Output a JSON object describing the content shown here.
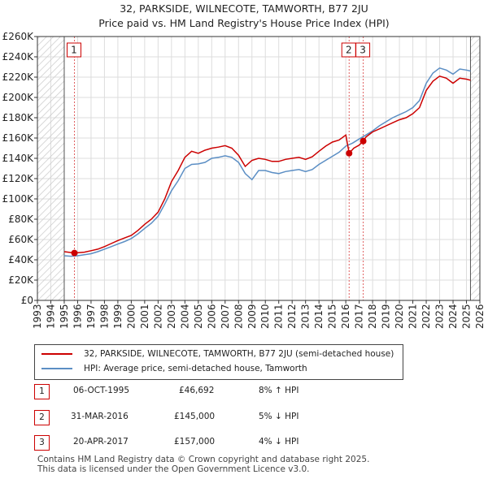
{
  "title_line1": "32, PARKSIDE, WILNECOTE, TAMWORTH, B77 2JU",
  "title_line2": "Price paid vs. HM Land Registry's House Price Index (HPI)",
  "colors": {
    "property_line": "#cc0000",
    "hpi_line": "#5b8ec4",
    "grid": "#dddddd",
    "hatch": "#cccccc",
    "marker_line": "#e06060",
    "marker_box_border": "#cc0000"
  },
  "chart_data": {
    "type": "line",
    "title": "32, PARKSIDE, WILNECOTE, TAMWORTH, B77 2JU — Price paid vs. HM Land Registry's House Price Index (HPI)",
    "xlabel": "",
    "ylabel": "",
    "xlim": [
      1993,
      2026
    ],
    "ylim": [
      0,
      260000
    ],
    "y_ticks": [
      0,
      20000,
      40000,
      60000,
      80000,
      100000,
      120000,
      140000,
      160000,
      180000,
      200000,
      220000,
      240000,
      260000
    ],
    "y_tick_labels": [
      "£0",
      "£20K",
      "£40K",
      "£60K",
      "£80K",
      "£100K",
      "£120K",
      "£140K",
      "£160K",
      "£180K",
      "£200K",
      "£220K",
      "£240K",
      "£260K"
    ],
    "x_ticks": [
      1993,
      1994,
      1995,
      1996,
      1997,
      1998,
      1999,
      2000,
      2001,
      2002,
      2003,
      2004,
      2005,
      2006,
      2007,
      2008,
      2009,
      2010,
      2011,
      2012,
      2013,
      2014,
      2015,
      2016,
      2017,
      2018,
      2019,
      2020,
      2021,
      2022,
      2023,
      2024,
      2025,
      2026
    ],
    "x_tick_labels": [
      "1993",
      "1994",
      "1995",
      "1996",
      "1997",
      "1998",
      "1999",
      "2000",
      "2001",
      "2002",
      "2003",
      "2004",
      "2005",
      "2006",
      "2007",
      "2008",
      "2009",
      "2010",
      "2011",
      "2012",
      "2013",
      "2014",
      "2015",
      "2016",
      "2017",
      "2018",
      "2019",
      "2020",
      "2021",
      "2022",
      "2023",
      "2024",
      "2025",
      "2026"
    ],
    "data_range": [
      1995.0,
      2025.3
    ],
    "grid": true,
    "legend_position": "bottom",
    "series": [
      {
        "name": "32, PARKSIDE, WILNECOTE, TAMWORTH, B77 2JU (semi-detached house)",
        "color": "#cc0000",
        "x": [
          1995.0,
          1995.76,
          1996.5,
          1997.0,
          1997.5,
          1998.0,
          1998.5,
          1999.0,
          1999.5,
          2000.0,
          2000.5,
          2001.0,
          2001.5,
          2002.0,
          2002.5,
          2003.0,
          2003.5,
          2004.0,
          2004.5,
          2005.0,
          2005.5,
          2006.0,
          2006.5,
          2007.0,
          2007.5,
          2008.0,
          2008.5,
          2009.0,
          2009.5,
          2010.0,
          2010.5,
          2011.0,
          2011.5,
          2012.0,
          2012.5,
          2013.0,
          2013.5,
          2014.0,
          2014.5,
          2015.0,
          2015.5,
          2016.0,
          2016.25,
          2016.6,
          2017.0,
          2017.3,
          2017.5,
          2018.0,
          2018.5,
          2019.0,
          2019.5,
          2020.0,
          2020.5,
          2021.0,
          2021.5,
          2022.0,
          2022.5,
          2023.0,
          2023.5,
          2024.0,
          2024.5,
          2025.0,
          2025.3
        ],
        "values": [
          48000,
          46692,
          47500,
          49000,
          50500,
          53000,
          56000,
          59000,
          61500,
          64000,
          69000,
          75000,
          80000,
          87000,
          100000,
          117000,
          128000,
          141000,
          147000,
          145000,
          148000,
          150000,
          151000,
          152500,
          150000,
          143000,
          132000,
          138000,
          140000,
          139000,
          137000,
          137000,
          139000,
          140000,
          141000,
          139000,
          141500,
          147000,
          152000,
          156000,
          158000,
          163000,
          145000,
          150000,
          153000,
          157000,
          161000,
          166000,
          169000,
          172000,
          175000,
          178000,
          180000,
          184000,
          190000,
          207000,
          216000,
          221000,
          219000,
          214000,
          219000,
          218000,
          217000
        ]
      },
      {
        "name": "HPI: Average price, semi-detached house, Tamworth",
        "color": "#5b8ec4",
        "x": [
          1995.0,
          1995.5,
          1996.0,
          1996.5,
          1997.0,
          1997.5,
          1998.0,
          1998.5,
          1999.0,
          1999.5,
          2000.0,
          2000.5,
          2001.0,
          2001.5,
          2002.0,
          2002.5,
          2003.0,
          2003.5,
          2004.0,
          2004.5,
          2005.0,
          2005.5,
          2006.0,
          2006.5,
          2007.0,
          2007.5,
          2008.0,
          2008.5,
          2009.0,
          2009.5,
          2010.0,
          2010.5,
          2011.0,
          2011.5,
          2012.0,
          2012.5,
          2013.0,
          2013.5,
          2014.0,
          2014.5,
          2015.0,
          2015.5,
          2016.0,
          2016.5,
          2017.0,
          2017.5,
          2018.0,
          2018.5,
          2019.0,
          2019.5,
          2020.0,
          2020.5,
          2021.0,
          2021.5,
          2022.0,
          2022.5,
          2023.0,
          2023.5,
          2024.0,
          2024.5,
          2025.0,
          2025.3
        ],
        "values": [
          44000,
          43500,
          44000,
          45000,
          46000,
          48000,
          50500,
          53000,
          55500,
          58000,
          61000,
          65500,
          71000,
          76000,
          83000,
          95000,
          108000,
          118000,
          130000,
          134000,
          134500,
          136000,
          140000,
          141000,
          142500,
          141000,
          136000,
          125000,
          119000,
          128000,
          128000,
          126000,
          125000,
          127000,
          128000,
          129000,
          127000,
          129000,
          134000,
          138000,
          142000,
          146000,
          152000,
          155000,
          159000,
          163000,
          167000,
          172000,
          176000,
          180000,
          183000,
          186000,
          190000,
          197000,
          214000,
          224000,
          229000,
          227000,
          223000,
          228000,
          227000,
          226000
        ]
      }
    ],
    "sale_markers": [
      {
        "label": "1",
        "x": 1995.76,
        "value": 46692
      },
      {
        "label": "2",
        "x": 2016.25,
        "value": 145000
      },
      {
        "label": "3",
        "x": 2017.3,
        "value": 157000
      }
    ]
  },
  "legend": {
    "property_label": "32, PARKSIDE, WILNECOTE, TAMWORTH, B77 2JU (semi-detached house)",
    "hpi_label": "HPI: Average price, semi-detached house, Tamworth"
  },
  "transactions": [
    {
      "num": "1",
      "date": "06-OCT-1995",
      "price": "£46,692",
      "hpi": "8% ↑ HPI"
    },
    {
      "num": "2",
      "date": "31-MAR-2016",
      "price": "£145,000",
      "hpi": "5% ↓ HPI"
    },
    {
      "num": "3",
      "date": "20-APR-2017",
      "price": "£157,000",
      "hpi": "4% ↓ HPI"
    }
  ],
  "footer_line1": "Contains HM Land Registry data © Crown copyright and database right 2025.",
  "footer_line2": "This data is licensed under the Open Government Licence v3.0."
}
